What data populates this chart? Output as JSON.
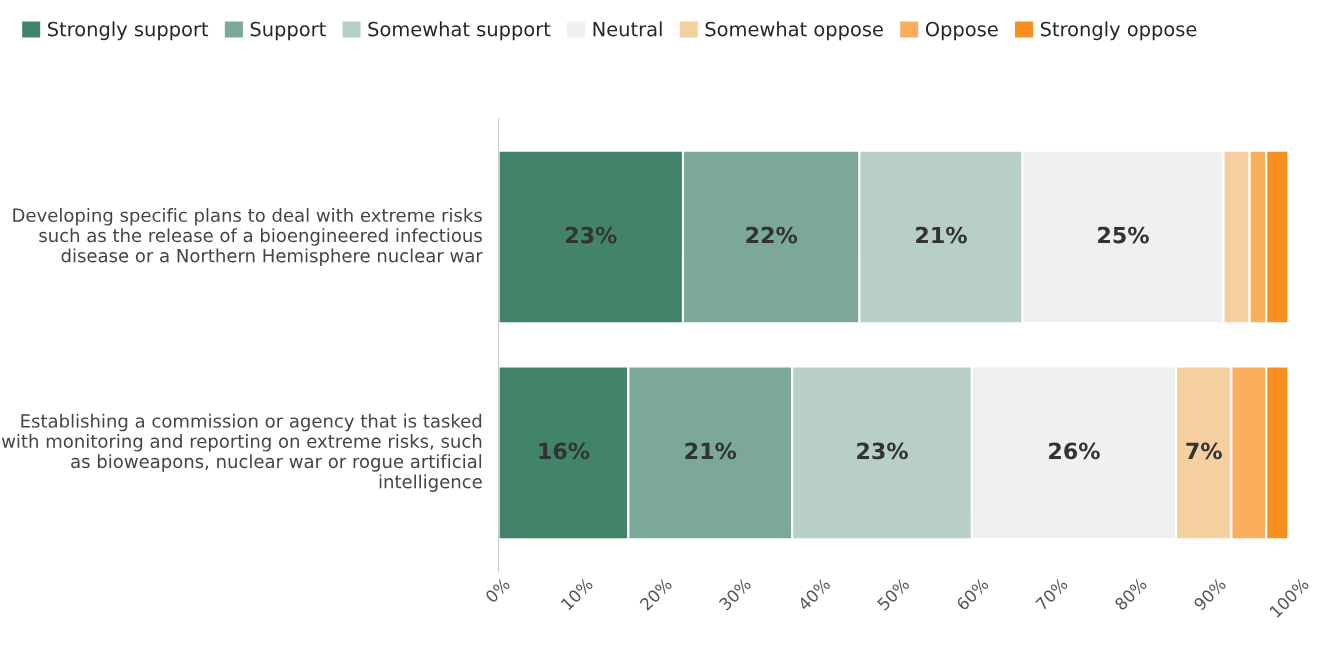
{
  "chart_data": {
    "type": "bar",
    "orientation": "horizontal",
    "stacked": true,
    "categories": [
      "Developing specific plans to deal with extreme risks such as the release of a bioengineered infectious disease or a Northern Hemisphere nuclear war",
      "Establishing a commission or agency that is tasked with monitoring and reporting on extreme risks, such as bioweapons, nuclear war or rogue artificial intelligence"
    ],
    "series": [
      {
        "name": "Strongly support",
        "color": "#41846a",
        "values": [
          23.3,
          16.4
        ],
        "value_labels": [
          "23%",
          "16%"
        ]
      },
      {
        "name": "Support",
        "color": "#7ba898",
        "values": [
          22.3,
          20.7
        ],
        "value_labels": [
          "22%",
          "21%"
        ]
      },
      {
        "name": "Somewhat support",
        "color": "#b8cfc6",
        "values": [
          20.6,
          22.7
        ],
        "value_labels": [
          "21%",
          "23%"
        ]
      },
      {
        "name": "Neutral",
        "color": "#f0f0f0",
        "values": [
          25.4,
          25.8
        ],
        "value_labels": [
          "25%",
          "26%"
        ]
      },
      {
        "name": "Somewhat oppose",
        "color": "#f5cfa0",
        "values": [
          3.3,
          7.0
        ],
        "value_labels": [
          null,
          "7%"
        ]
      },
      {
        "name": "Oppose",
        "color": "#f8ae5a",
        "values": [
          2.1,
          4.4
        ],
        "value_labels": [
          null,
          null
        ]
      },
      {
        "name": "Strongly oppose",
        "color": "#f7901e",
        "values": [
          2.8,
          2.8
        ],
        "value_labels": [
          null,
          null
        ]
      }
    ],
    "xlim": [
      0,
      100
    ],
    "xticks": [
      {
        "value": 0,
        "label": "0%"
      },
      {
        "value": 10,
        "label": "10%"
      },
      {
        "value": 20,
        "label": "20%"
      },
      {
        "value": 30,
        "label": "30%"
      },
      {
        "value": 40,
        "label": "40%"
      },
      {
        "value": 50,
        "label": "50%"
      },
      {
        "value": 60,
        "label": "60%"
      },
      {
        "value": 70,
        "label": "70%"
      },
      {
        "value": 80,
        "label": "80%"
      },
      {
        "value": 90,
        "label": "90%"
      },
      {
        "value": 100,
        "label": "100%"
      }
    ],
    "grid": false,
    "legend": "top left"
  }
}
